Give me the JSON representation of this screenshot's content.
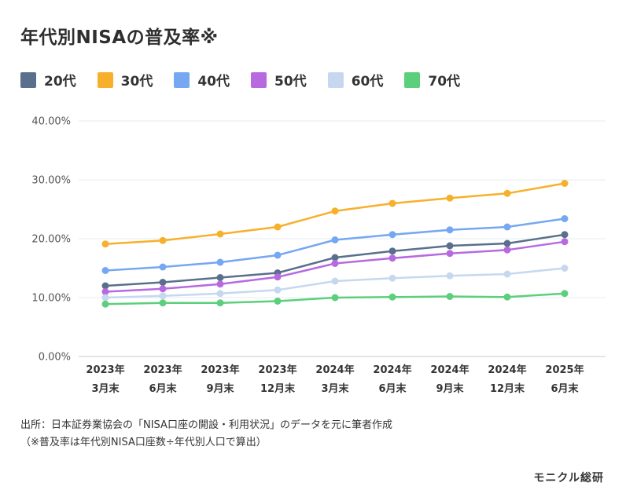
{
  "title": "年代別NISAの普及率※",
  "chart_data": {
    "type": "line",
    "title": "年代別NISAの普及率※",
    "xlabel": "",
    "ylabel": "",
    "ylim": [
      0,
      40
    ],
    "y_ticks": [
      "0.00%",
      "10.00%",
      "20.00%",
      "30.00%",
      "40.00%"
    ],
    "y_tick_values": [
      0,
      10,
      20,
      30,
      40
    ],
    "grid": true,
    "legend_position": "top-left",
    "categories": [
      {
        "year": "2023年",
        "month": "3月末"
      },
      {
        "year": "2023年",
        "month": "6月末"
      },
      {
        "year": "2023年",
        "month": "9月末"
      },
      {
        "year": "2023年",
        "month": "12月末"
      },
      {
        "year": "2024年",
        "month": "3月末"
      },
      {
        "year": "2024年",
        "month": "6月末"
      },
      {
        "year": "2024年",
        "month": "9月末"
      },
      {
        "year": "2024年",
        "month": "12月末"
      },
      {
        "year": "2025年",
        "month": "6月末"
      }
    ],
    "series": [
      {
        "name": "20代",
        "color": "#5a6f8c",
        "values": [
          12.0,
          12.6,
          13.4,
          14.2,
          16.8,
          17.9,
          18.8,
          19.2,
          20.7
        ]
      },
      {
        "name": "30代",
        "color": "#f7b02b",
        "values": [
          19.1,
          19.7,
          20.8,
          22.0,
          24.7,
          26.0,
          26.9,
          27.7,
          29.4
        ]
      },
      {
        "name": "40代",
        "color": "#75a7f2",
        "values": [
          14.6,
          15.2,
          16.0,
          17.2,
          19.8,
          20.7,
          21.5,
          22.0,
          23.4
        ]
      },
      {
        "name": "50代",
        "color": "#b76ae0",
        "values": [
          11.0,
          11.5,
          12.3,
          13.5,
          15.8,
          16.7,
          17.5,
          18.1,
          19.5
        ]
      },
      {
        "name": "60代",
        "color": "#c6d8f0",
        "values": [
          10.0,
          10.3,
          10.7,
          11.3,
          12.8,
          13.3,
          13.7,
          14.0,
          15.0
        ]
      },
      {
        "name": "70代",
        "color": "#5ccf7c",
        "values": [
          8.9,
          9.1,
          9.1,
          9.4,
          10.0,
          10.1,
          10.2,
          10.1,
          10.7
        ]
      }
    ]
  },
  "source": {
    "line1": "出所：日本証券業協会の「NISA口座の開設・利用状況」のデータを元に筆者作成",
    "line2": "（※普及率は年代別NISA口座数÷年代別人口で算出）"
  },
  "logo": "モニクル総研"
}
